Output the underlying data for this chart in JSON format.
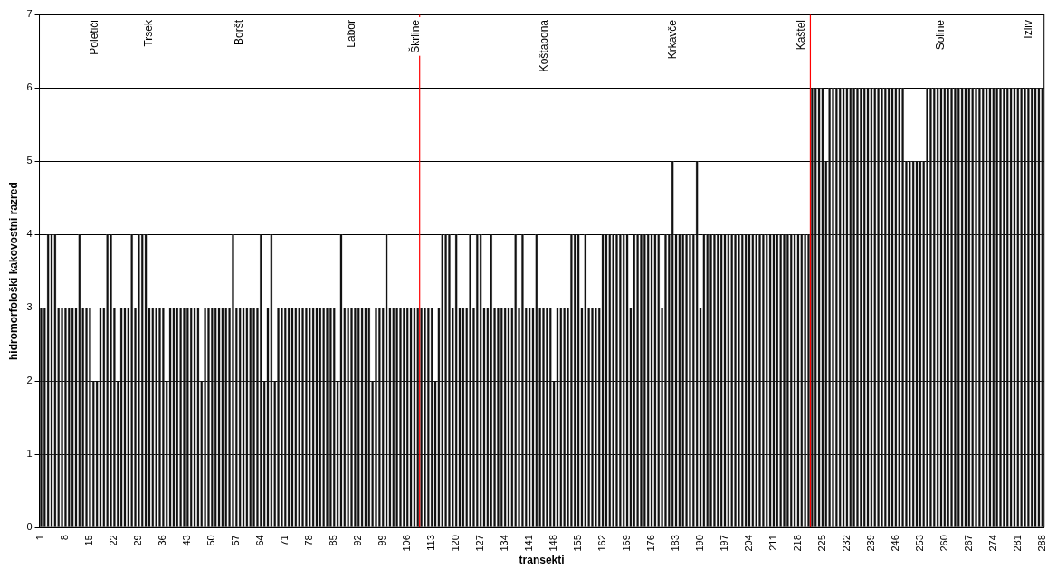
{
  "chart_data": {
    "type": "bar",
    "xlabel": "transekti",
    "ylabel": "hidromorfološki kakovostni razred",
    "x": [
      1,
      2,
      3,
      4,
      5,
      6,
      7,
      8,
      9,
      10,
      11,
      12,
      13,
      14,
      15,
      16,
      17,
      18,
      19,
      20,
      21,
      22,
      23,
      24,
      25,
      26,
      27,
      28,
      29,
      30,
      31,
      32,
      33,
      34,
      35,
      36,
      37,
      38,
      39,
      40,
      41,
      42,
      43,
      44,
      45,
      46,
      47,
      48,
      49,
      50,
      51,
      52,
      53,
      54,
      55,
      56,
      57,
      58,
      59,
      60,
      61,
      62,
      63,
      64,
      65,
      66,
      67,
      68,
      69,
      70,
      71,
      72,
      73,
      74,
      75,
      76,
      77,
      78,
      79,
      80,
      81,
      82,
      83,
      84,
      85,
      86,
      87,
      88,
      89,
      90,
      91,
      92,
      93,
      94,
      95,
      96,
      97,
      98,
      99,
      100,
      101,
      102,
      103,
      104,
      105,
      106,
      107,
      108,
      109,
      110,
      111,
      112,
      113,
      114,
      115,
      116,
      117,
      118,
      119,
      120,
      121,
      122,
      123,
      124,
      125,
      126,
      127,
      128,
      129,
      130,
      131,
      132,
      133,
      134,
      135,
      136,
      137,
      138,
      139,
      140,
      141,
      142,
      143,
      144,
      145,
      146,
      147,
      148,
      149,
      150,
      151,
      152,
      153,
      154,
      155,
      156,
      157,
      158,
      159,
      160,
      161,
      162,
      163,
      164,
      165,
      166,
      167,
      168,
      169,
      170,
      171,
      172,
      173,
      174,
      175,
      176,
      177,
      178,
      179,
      180,
      181,
      182,
      183,
      184,
      185,
      186,
      187,
      188,
      189,
      190,
      191,
      192,
      193,
      194,
      195,
      196,
      197,
      198,
      199,
      200,
      201,
      202,
      203,
      204,
      205,
      206,
      207,
      208,
      209,
      210,
      211,
      212,
      213,
      214,
      215,
      216,
      217,
      218,
      219,
      220,
      221,
      222,
      223,
      224,
      225,
      226,
      227,
      228,
      229,
      230,
      231,
      232,
      233,
      234,
      235,
      236,
      237,
      238,
      239,
      240,
      241,
      242,
      243,
      244,
      245,
      246,
      247,
      248,
      249,
      250,
      251,
      252,
      253,
      254,
      255,
      256,
      257,
      258,
      259,
      260,
      261,
      262,
      263,
      264,
      265,
      266,
      267,
      268,
      269,
      270,
      271,
      272,
      273,
      274,
      275,
      276,
      277,
      278,
      279,
      280,
      281,
      282,
      283,
      284,
      285,
      286,
      287,
      288
    ],
    "values": [
      3,
      3,
      4,
      4,
      4,
      3,
      3,
      3,
      3,
      3,
      3,
      4,
      3,
      3,
      3,
      2,
      2,
      3,
      3,
      4,
      4,
      3,
      2,
      3,
      3,
      3,
      4,
      3,
      4,
      4,
      4,
      3,
      3,
      3,
      3,
      3,
      2,
      3,
      3,
      3,
      3,
      3,
      3,
      3,
      3,
      3,
      2,
      3,
      3,
      3,
      3,
      3,
      3,
      3,
      3,
      4,
      3,
      3,
      3,
      3,
      3,
      3,
      3,
      4,
      2,
      3,
      4,
      2,
      3,
      3,
      3,
      3,
      3,
      3,
      3,
      3,
      3,
      3,
      3,
      3,
      3,
      3,
      3,
      3,
      3,
      2,
      4,
      3,
      3,
      3,
      3,
      3,
      3,
      3,
      3,
      2,
      3,
      3,
      3,
      4,
      3,
      3,
      3,
      3,
      3,
      3,
      3,
      3,
      3,
      3,
      3,
      3,
      3,
      2,
      3,
      4,
      4,
      4,
      3,
      4,
      3,
      3,
      3,
      4,
      3,
      4,
      4,
      3,
      3,
      4,
      3,
      3,
      3,
      3,
      3,
      3,
      4,
      3,
      4,
      3,
      3,
      3,
      4,
      3,
      3,
      3,
      3,
      2,
      3,
      3,
      3,
      3,
      4,
      4,
      4,
      3,
      4,
      3,
      3,
      3,
      3,
      4,
      4,
      4,
      4,
      4,
      4,
      4,
      4,
      3,
      4,
      4,
      4,
      4,
      4,
      4,
      4,
      4,
      3,
      4,
      4,
      5,
      4,
      4,
      4,
      4,
      4,
      4,
      5,
      3,
      4,
      4,
      4,
      4,
      4,
      4,
      4,
      4,
      4,
      4,
      4,
      4,
      4,
      4,
      4,
      4,
      4,
      4,
      4,
      4,
      4,
      4,
      4,
      4,
      4,
      4,
      4,
      4,
      4,
      4,
      4,
      6,
      6,
      6,
      6,
      5,
      6,
      6,
      6,
      6,
      6,
      6,
      6,
      6,
      6,
      6,
      6,
      6,
      6,
      6,
      6,
      6,
      6,
      6,
      6,
      6,
      6,
      6,
      5,
      5,
      5,
      5,
      5,
      5,
      6,
      6,
      6,
      6,
      6,
      6,
      6,
      6,
      6,
      6,
      6,
      6,
      6,
      6,
      6,
      6,
      6,
      6,
      6,
      6,
      6,
      6,
      6,
      6,
      6,
      6,
      6,
      6,
      6,
      6,
      6,
      6,
      6,
      6
    ],
    "color": "#111111",
    "xlim": [
      0.5,
      288.5
    ],
    "xticks": [
      1,
      8,
      15,
      22,
      29,
      36,
      43,
      50,
      57,
      64,
      71,
      78,
      85,
      92,
      99,
      106,
      113,
      120,
      127,
      134,
      141,
      148,
      155,
      162,
      169,
      176,
      183,
      190,
      197,
      204,
      211,
      218,
      225,
      232,
      239,
      246,
      253,
      260,
      267,
      274,
      281,
      288
    ],
    "ylim": [
      0,
      7
    ],
    "yticks": [
      0,
      1,
      2,
      3,
      4,
      5,
      6,
      7
    ],
    "grid": "y",
    "ref_lines": [
      {
        "axis": "x",
        "value": 109.5,
        "color": "#ff0000"
      },
      {
        "axis": "x",
        "value": 221.5,
        "color": "#ff0000"
      }
    ],
    "annotations": [
      "Poletiči",
      {
        "text": "Trsek",
        "x": 32
      },
      {
        "text": "Boršt",
        "x": 58
      },
      {
        "text": "Labor",
        "x": 90
      },
      {
        "text": "Škrline",
        "x": 108.5
      },
      "Koštabona",
      "Krkavče",
      {
        "text": "Kaštel",
        "x": 219
      },
      {
        "text": "Soline",
        "x": 259
      },
      {
        "text": "Izliv",
        "x": 284
      }
    ]
  }
}
